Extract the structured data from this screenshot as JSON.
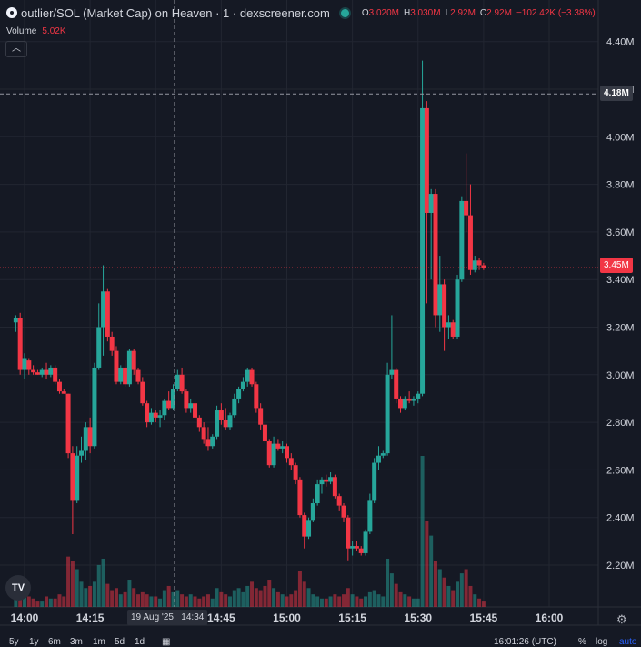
{
  "header": {
    "title": "outlier/SOL (Market Cap) on Heaven · 1 · dexscreener.com",
    "ohlc": [
      {
        "k": "O",
        "v": "3.020M"
      },
      {
        "k": "H",
        "v": "3.030M"
      },
      {
        "k": "L",
        "v": "2.92M"
      },
      {
        "k": "C",
        "v": "2.92M"
      }
    ],
    "change": "−102.42K (−3.38%)"
  },
  "volume_label": {
    "label": "Volume",
    "value": "5.02K"
  },
  "collapse_icon": "chevron-up-icon",
  "crosshair": {
    "price_label": "4.18M",
    "time_label": "19 Aug '25   14:34"
  },
  "last_price_label": "3.45M",
  "colors": {
    "up": "#26a69a",
    "down": "#f23645",
    "background": "#151924",
    "grid": "#222631"
  },
  "bottom_bar": {
    "ranges": [
      "5y",
      "1y",
      "6m",
      "3m",
      "1m",
      "5d",
      "1d"
    ],
    "clock": "16:01:26 (UTC)",
    "percent": "%",
    "log": "log",
    "auto": "auto"
  },
  "chart_data": {
    "type": "candlestick",
    "title": "outlier/SOL (Market Cap) on Heaven · 1 · dexscreener.com",
    "ylim": [
      2.1,
      4.45
    ],
    "y_ticks": [
      "2.20M",
      "2.40M",
      "2.60M",
      "2.80M",
      "3.00M",
      "3.20M",
      "3.40M",
      "3.60M",
      "3.80M",
      "4.00M",
      "4.20M",
      "4.40M"
    ],
    "x_ticks": [
      "14:00",
      "14:15",
      "14:30",
      "14:45",
      "15:00",
      "15:15",
      "15:30",
      "15:45",
      "16:00"
    ],
    "x_start": "13:58",
    "x_end": "16:00",
    "candles": [
      {
        "o": 3.22,
        "h": 3.25,
        "l": 3.18,
        "c": 3.24,
        "v": 0.6
      },
      {
        "o": 3.24,
        "h": 3.26,
        "l": 3.0,
        "c": 3.02,
        "v": 1.0
      },
      {
        "o": 3.02,
        "h": 3.09,
        "l": 2.98,
        "c": 3.07,
        "v": 0.8
      },
      {
        "o": 3.06,
        "h": 3.07,
        "l": 3.0,
        "c": 3.02,
        "v": 0.5
      },
      {
        "o": 3.02,
        "h": 3.04,
        "l": 3.0,
        "c": 3.01,
        "v": 0.4
      },
      {
        "o": 3.01,
        "h": 3.02,
        "l": 3.0,
        "c": 3.0,
        "v": 0.3
      },
      {
        "o": 3.0,
        "h": 3.03,
        "l": 2.99,
        "c": 3.02,
        "v": 0.3
      },
      {
        "o": 3.02,
        "h": 3.05,
        "l": 2.98,
        "c": 3.0,
        "v": 0.5
      },
      {
        "o": 3.0,
        "h": 3.04,
        "l": 2.99,
        "c": 3.03,
        "v": 0.4
      },
      {
        "o": 3.03,
        "h": 3.04,
        "l": 2.96,
        "c": 2.97,
        "v": 0.4
      },
      {
        "o": 2.97,
        "h": 2.98,
        "l": 2.92,
        "c": 2.93,
        "v": 0.6
      },
      {
        "o": 2.93,
        "h": 2.94,
        "l": 2.92,
        "c": 2.92,
        "v": 0.5
      },
      {
        "o": 2.92,
        "h": 2.92,
        "l": 2.65,
        "c": 2.67,
        "v": 2.4
      },
      {
        "o": 2.67,
        "h": 2.7,
        "l": 2.33,
        "c": 2.47,
        "v": 2.2
      },
      {
        "o": 2.47,
        "h": 2.7,
        "l": 2.46,
        "c": 2.66,
        "v": 1.8
      },
      {
        "o": 2.66,
        "h": 2.74,
        "l": 2.63,
        "c": 2.68,
        "v": 1.2
      },
      {
        "o": 2.68,
        "h": 2.8,
        "l": 2.64,
        "c": 2.78,
        "v": 0.9
      },
      {
        "o": 2.78,
        "h": 2.82,
        "l": 2.67,
        "c": 2.7,
        "v": 1.0
      },
      {
        "o": 2.7,
        "h": 3.05,
        "l": 2.69,
        "c": 3.03,
        "v": 1.2
      },
      {
        "o": 3.03,
        "h": 3.3,
        "l": 3.02,
        "c": 3.2,
        "v": 2.0
      },
      {
        "o": 3.2,
        "h": 3.46,
        "l": 3.08,
        "c": 3.35,
        "v": 2.3
      },
      {
        "o": 3.35,
        "h": 3.36,
        "l": 3.14,
        "c": 3.16,
        "v": 1.1
      },
      {
        "o": 3.16,
        "h": 3.18,
        "l": 3.08,
        "c": 3.1,
        "v": 0.8
      },
      {
        "o": 3.1,
        "h": 3.12,
        "l": 2.96,
        "c": 2.97,
        "v": 0.9
      },
      {
        "o": 2.97,
        "h": 3.04,
        "l": 2.96,
        "c": 3.03,
        "v": 0.6
      },
      {
        "o": 3.03,
        "h": 3.06,
        "l": 2.95,
        "c": 2.96,
        "v": 0.7
      },
      {
        "o": 2.96,
        "h": 3.11,
        "l": 2.95,
        "c": 3.1,
        "v": 1.3
      },
      {
        "o": 3.1,
        "h": 3.11,
        "l": 3.0,
        "c": 3.02,
        "v": 0.9
      },
      {
        "o": 3.02,
        "h": 3.03,
        "l": 2.96,
        "c": 2.97,
        "v": 0.6
      },
      {
        "o": 2.97,
        "h": 2.99,
        "l": 2.87,
        "c": 2.88,
        "v": 0.7
      },
      {
        "o": 2.88,
        "h": 2.89,
        "l": 2.78,
        "c": 2.8,
        "v": 0.6
      },
      {
        "o": 2.8,
        "h": 2.86,
        "l": 2.79,
        "c": 2.84,
        "v": 0.5
      },
      {
        "o": 2.84,
        "h": 2.85,
        "l": 2.8,
        "c": 2.82,
        "v": 0.5
      },
      {
        "o": 2.82,
        "h": 2.85,
        "l": 2.78,
        "c": 2.83,
        "v": 0.4
      },
      {
        "o": 2.83,
        "h": 2.9,
        "l": 2.81,
        "c": 2.89,
        "v": 0.8
      },
      {
        "o": 2.89,
        "h": 2.93,
        "l": 2.85,
        "c": 2.86,
        "v": 1.0
      },
      {
        "o": 2.86,
        "h": 2.96,
        "l": 2.85,
        "c": 2.94,
        "v": 0.7
      },
      {
        "o": 2.94,
        "h": 3.02,
        "l": 2.93,
        "c": 3.0,
        "v": 0.8
      },
      {
        "o": 3.0,
        "h": 3.03,
        "l": 2.92,
        "c": 2.93,
        "v": 0.6
      },
      {
        "o": 2.93,
        "h": 2.94,
        "l": 2.84,
        "c": 2.86,
        "v": 0.5
      },
      {
        "o": 2.86,
        "h": 2.9,
        "l": 2.84,
        "c": 2.88,
        "v": 0.6
      },
      {
        "o": 2.88,
        "h": 2.89,
        "l": 2.81,
        "c": 2.82,
        "v": 0.5
      },
      {
        "o": 2.82,
        "h": 2.83,
        "l": 2.76,
        "c": 2.78,
        "v": 0.4
      },
      {
        "o": 2.78,
        "h": 2.8,
        "l": 2.71,
        "c": 2.73,
        "v": 0.5
      },
      {
        "o": 2.73,
        "h": 2.78,
        "l": 2.68,
        "c": 2.7,
        "v": 0.6
      },
      {
        "o": 2.7,
        "h": 2.75,
        "l": 2.69,
        "c": 2.74,
        "v": 0.4
      },
      {
        "o": 2.74,
        "h": 2.87,
        "l": 2.73,
        "c": 2.85,
        "v": 0.9
      },
      {
        "o": 2.85,
        "h": 2.88,
        "l": 2.79,
        "c": 2.81,
        "v": 0.7
      },
      {
        "o": 2.81,
        "h": 2.86,
        "l": 2.77,
        "c": 2.78,
        "v": 0.6
      },
      {
        "o": 2.78,
        "h": 2.84,
        "l": 2.77,
        "c": 2.83,
        "v": 0.5
      },
      {
        "o": 2.83,
        "h": 2.92,
        "l": 2.82,
        "c": 2.9,
        "v": 0.8
      },
      {
        "o": 2.9,
        "h": 2.95,
        "l": 2.88,
        "c": 2.94,
        "v": 0.9
      },
      {
        "o": 2.94,
        "h": 2.99,
        "l": 2.93,
        "c": 2.97,
        "v": 0.7
      },
      {
        "o": 2.97,
        "h": 3.03,
        "l": 2.95,
        "c": 3.02,
        "v": 1.0
      },
      {
        "o": 3.02,
        "h": 3.03,
        "l": 2.95,
        "c": 2.96,
        "v": 1.2
      },
      {
        "o": 2.96,
        "h": 2.97,
        "l": 2.84,
        "c": 2.86,
        "v": 0.9
      },
      {
        "o": 2.86,
        "h": 2.88,
        "l": 2.77,
        "c": 2.79,
        "v": 0.8
      },
      {
        "o": 2.79,
        "h": 2.8,
        "l": 2.71,
        "c": 2.72,
        "v": 1.0
      },
      {
        "o": 2.72,
        "h": 2.73,
        "l": 2.61,
        "c": 2.62,
        "v": 1.3
      },
      {
        "o": 2.62,
        "h": 2.74,
        "l": 2.61,
        "c": 2.71,
        "v": 0.9
      },
      {
        "o": 2.71,
        "h": 2.73,
        "l": 2.68,
        "c": 2.69,
        "v": 0.7
      },
      {
        "o": 2.69,
        "h": 2.72,
        "l": 2.67,
        "c": 2.7,
        "v": 0.6
      },
      {
        "o": 2.7,
        "h": 2.71,
        "l": 2.63,
        "c": 2.65,
        "v": 0.5
      },
      {
        "o": 2.65,
        "h": 2.67,
        "l": 2.6,
        "c": 2.62,
        "v": 0.6
      },
      {
        "o": 2.62,
        "h": 2.63,
        "l": 2.54,
        "c": 2.56,
        "v": 0.8
      },
      {
        "o": 2.56,
        "h": 2.57,
        "l": 2.4,
        "c": 2.41,
        "v": 1.7
      },
      {
        "o": 2.41,
        "h": 2.42,
        "l": 2.27,
        "c": 2.32,
        "v": 1.2
      },
      {
        "o": 2.32,
        "h": 2.4,
        "l": 2.31,
        "c": 2.39,
        "v": 0.9
      },
      {
        "o": 2.39,
        "h": 2.48,
        "l": 2.38,
        "c": 2.46,
        "v": 0.6
      },
      {
        "o": 2.46,
        "h": 2.56,
        "l": 2.45,
        "c": 2.54,
        "v": 0.5
      },
      {
        "o": 2.54,
        "h": 2.57,
        "l": 2.5,
        "c": 2.56,
        "v": 0.4
      },
      {
        "o": 2.56,
        "h": 2.58,
        "l": 2.53,
        "c": 2.55,
        "v": 0.4
      },
      {
        "o": 2.55,
        "h": 2.59,
        "l": 2.54,
        "c": 2.57,
        "v": 0.5
      },
      {
        "o": 2.57,
        "h": 2.58,
        "l": 2.48,
        "c": 2.49,
        "v": 0.6
      },
      {
        "o": 2.49,
        "h": 2.5,
        "l": 2.43,
        "c": 2.45,
        "v": 0.5
      },
      {
        "o": 2.45,
        "h": 2.46,
        "l": 2.38,
        "c": 2.4,
        "v": 0.6
      },
      {
        "o": 2.4,
        "h": 2.41,
        "l": 2.22,
        "c": 2.27,
        "v": 0.9
      },
      {
        "o": 2.27,
        "h": 2.3,
        "l": 2.24,
        "c": 2.28,
        "v": 0.6
      },
      {
        "o": 2.28,
        "h": 2.3,
        "l": 2.26,
        "c": 2.27,
        "v": 0.5
      },
      {
        "o": 2.27,
        "h": 2.28,
        "l": 2.24,
        "c": 2.25,
        "v": 0.4
      },
      {
        "o": 2.25,
        "h": 2.35,
        "l": 2.24,
        "c": 2.34,
        "v": 0.5
      },
      {
        "o": 2.34,
        "h": 2.5,
        "l": 2.33,
        "c": 2.47,
        "v": 0.7
      },
      {
        "o": 2.47,
        "h": 2.65,
        "l": 2.46,
        "c": 2.63,
        "v": 0.8
      },
      {
        "o": 2.63,
        "h": 2.7,
        "l": 2.6,
        "c": 2.66,
        "v": 0.6
      },
      {
        "o": 2.66,
        "h": 2.68,
        "l": 2.65,
        "c": 2.67,
        "v": 0.5
      },
      {
        "o": 2.67,
        "h": 3.05,
        "l": 2.66,
        "c": 3.0,
        "v": 2.3
      },
      {
        "o": 3.0,
        "h": 3.25,
        "l": 2.98,
        "c": 3.02,
        "v": 1.6
      },
      {
        "o": 3.02,
        "h": 3.03,
        "l": 2.88,
        "c": 2.9,
        "v": 1.1
      },
      {
        "o": 2.9,
        "h": 2.91,
        "l": 2.84,
        "c": 2.86,
        "v": 0.7
      },
      {
        "o": 2.86,
        "h": 2.91,
        "l": 2.85,
        "c": 2.9,
        "v": 0.6
      },
      {
        "o": 2.9,
        "h": 2.93,
        "l": 2.88,
        "c": 2.89,
        "v": 0.5
      },
      {
        "o": 2.89,
        "h": 2.91,
        "l": 2.87,
        "c": 2.9,
        "v": 0.4
      },
      {
        "o": 2.9,
        "h": 2.93,
        "l": 2.88,
        "c": 2.92,
        "v": 0.4
      },
      {
        "o": 2.92,
        "h": 4.32,
        "l": 2.91,
        "c": 4.12,
        "v": 7.2
      },
      {
        "o": 4.12,
        "h": 4.15,
        "l": 3.3,
        "c": 3.68,
        "v": 4.1
      },
      {
        "o": 3.68,
        "h": 3.78,
        "l": 3.4,
        "c": 3.76,
        "v": 3.4
      },
      {
        "o": 3.76,
        "h": 3.78,
        "l": 3.2,
        "c": 3.25,
        "v": 2.2
      },
      {
        "o": 3.25,
        "h": 3.5,
        "l": 3.18,
        "c": 3.38,
        "v": 1.8
      },
      {
        "o": 3.38,
        "h": 3.4,
        "l": 3.1,
        "c": 3.2,
        "v": 1.4
      },
      {
        "o": 3.2,
        "h": 3.25,
        "l": 3.15,
        "c": 3.22,
        "v": 1.0
      },
      {
        "o": 3.22,
        "h": 3.23,
        "l": 3.15,
        "c": 3.16,
        "v": 0.8
      },
      {
        "o": 3.16,
        "h": 3.42,
        "l": 3.15,
        "c": 3.4,
        "v": 1.2
      },
      {
        "o": 3.4,
        "h": 3.75,
        "l": 3.39,
        "c": 3.73,
        "v": 1.6
      },
      {
        "o": 3.73,
        "h": 3.93,
        "l": 3.6,
        "c": 3.67,
        "v": 1.8
      },
      {
        "o": 3.67,
        "h": 3.8,
        "l": 3.42,
        "c": 3.44,
        "v": 1.0
      },
      {
        "o": 3.44,
        "h": 3.5,
        "l": 3.43,
        "c": 3.48,
        "v": 0.6
      },
      {
        "o": 3.48,
        "h": 3.49,
        "l": 3.44,
        "c": 3.46,
        "v": 0.4
      },
      {
        "o": 3.46,
        "h": 3.47,
        "l": 3.44,
        "c": 3.45,
        "v": 0.3
      }
    ]
  }
}
